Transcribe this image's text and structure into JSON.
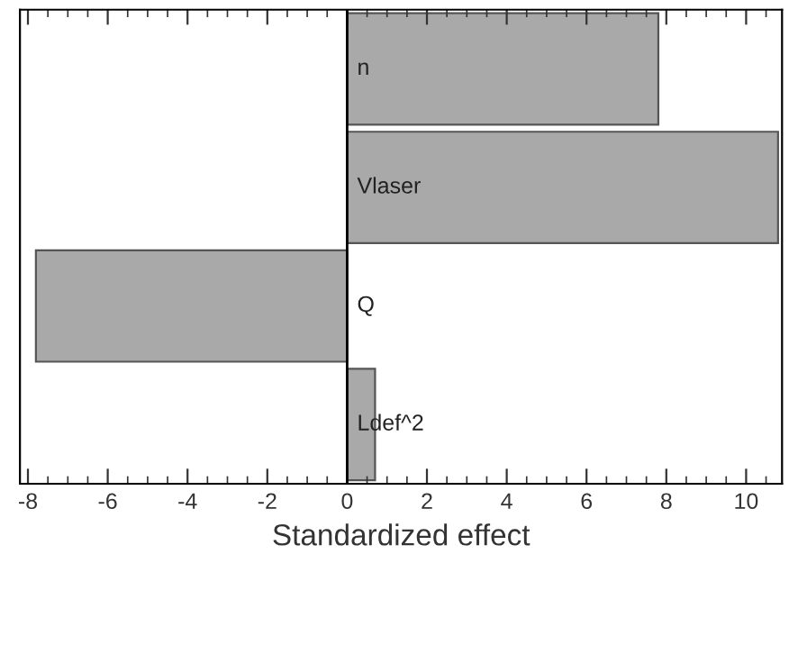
{
  "chart_data": {
    "type": "bar",
    "orientation": "horizontal",
    "xlabel": "Standardized effect",
    "categories": [
      "n",
      "Vlaser",
      "Q",
      "Ldef^2"
    ],
    "values": [
      7.8,
      10.8,
      -7.8,
      0.7
    ],
    "color": "#a9a9a9",
    "xlim": [
      -8.2,
      10.9
    ],
    "xticks": [
      -8,
      -6,
      -4,
      -2,
      0,
      2,
      4,
      6,
      8,
      10
    ],
    "tick_labels": "x",
    "grid": false,
    "legend": false
  }
}
